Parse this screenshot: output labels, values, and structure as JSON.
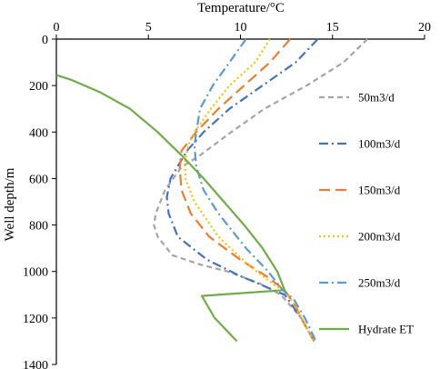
{
  "chart_data": {
    "type": "line",
    "xlabel": "Temperature/°C",
    "ylabel": "Well depth/m",
    "x_axis_position": "top",
    "y_axis_inverted": true,
    "xlim": [
      0,
      20
    ],
    "ylim": [
      0,
      1400
    ],
    "x_ticks": [
      0,
      5,
      10,
      15,
      20
    ],
    "y_ticks": [
      0,
      200,
      400,
      600,
      800,
      1000,
      1200,
      1400
    ],
    "grid": false,
    "legend_position": "right",
    "series": [
      {
        "name": "50m3/d",
        "color": "#a5a5a5",
        "dash": "dash",
        "points": [
          [
            16.9,
            0
          ],
          [
            15.6,
            100
          ],
          [
            13.6,
            200
          ],
          [
            11.3,
            300
          ],
          [
            9.5,
            400
          ],
          [
            7.8,
            500
          ],
          [
            6.8,
            550
          ],
          [
            5.9,
            650
          ],
          [
            5.4,
            750
          ],
          [
            5.3,
            800
          ],
          [
            5.5,
            850
          ],
          [
            6.3,
            930
          ],
          [
            7.8,
            970
          ],
          [
            9.3,
            1000
          ],
          [
            11.0,
            1050
          ],
          [
            12.2,
            1100
          ],
          [
            13.3,
            1200
          ],
          [
            14.0,
            1300
          ]
        ]
      },
      {
        "name": "100m3/d",
        "color": "#4472c4",
        "dash": "dashdot",
        "points": [
          [
            14.2,
            0
          ],
          [
            13.0,
            100
          ],
          [
            11.2,
            200
          ],
          [
            9.4,
            300
          ],
          [
            8.0,
            400
          ],
          [
            7.1,
            480
          ],
          [
            6.2,
            600
          ],
          [
            6.0,
            680
          ],
          [
            6.1,
            750
          ],
          [
            6.6,
            850
          ],
          [
            8.2,
            950
          ],
          [
            10.0,
            1020
          ],
          [
            11.5,
            1070
          ],
          [
            12.4,
            1100
          ],
          [
            13.3,
            1200
          ],
          [
            14.0,
            1300
          ]
        ]
      },
      {
        "name": "150m3/d",
        "color": "#ed7d31",
        "dash": "longdash",
        "points": [
          [
            12.7,
            0
          ],
          [
            11.6,
            100
          ],
          [
            10.2,
            200
          ],
          [
            8.8,
            300
          ],
          [
            7.6,
            400
          ],
          [
            6.8,
            480
          ],
          [
            6.7,
            560
          ],
          [
            6.8,
            650
          ],
          [
            7.3,
            750
          ],
          [
            8.3,
            850
          ],
          [
            10.0,
            950
          ],
          [
            11.4,
            1020
          ],
          [
            12.4,
            1080
          ],
          [
            13.0,
            1150
          ],
          [
            13.5,
            1230
          ],
          [
            14.0,
            1300
          ]
        ]
      },
      {
        "name": "200m3/d",
        "color": "#ffc000",
        "dash": "dot",
        "points": [
          [
            11.6,
            0
          ],
          [
            10.8,
            100
          ],
          [
            9.4,
            200
          ],
          [
            8.4,
            300
          ],
          [
            7.5,
            400
          ],
          [
            7.2,
            450
          ],
          [
            7.0,
            520
          ],
          [
            7.0,
            600
          ],
          [
            7.5,
            700
          ],
          [
            8.8,
            850
          ],
          [
            10.4,
            970
          ],
          [
            11.7,
            1050
          ],
          [
            12.6,
            1100
          ],
          [
            13.2,
            1180
          ],
          [
            14.0,
            1300
          ]
        ]
      },
      {
        "name": "250m3/d",
        "color": "#5b9bd5",
        "dash": "dashdot",
        "points": [
          [
            10.3,
            0
          ],
          [
            9.4,
            100
          ],
          [
            8.5,
            200
          ],
          [
            7.8,
            300
          ],
          [
            7.6,
            400
          ],
          [
            7.5,
            460
          ],
          [
            7.6,
            550
          ],
          [
            8.0,
            650
          ],
          [
            8.8,
            750
          ],
          [
            10.3,
            900
          ],
          [
            11.5,
            1000
          ],
          [
            12.3,
            1080
          ],
          [
            12.9,
            1120
          ],
          [
            13.5,
            1200
          ],
          [
            14.1,
            1300
          ]
        ]
      },
      {
        "name": "Hydrate ET",
        "color": "#70ad47",
        "dash": "solid",
        "points": [
          [
            0.0,
            155
          ],
          [
            0.8,
            175
          ],
          [
            2.4,
            230
          ],
          [
            4.0,
            300
          ],
          [
            5.5,
            400
          ],
          [
            6.8,
            500
          ],
          [
            8.0,
            600
          ],
          [
            9.1,
            700
          ],
          [
            10.2,
            800
          ],
          [
            11.2,
            900
          ],
          [
            12.0,
            1000
          ],
          [
            12.4,
            1080
          ],
          [
            7.9,
            1105
          ],
          [
            8.6,
            1200
          ],
          [
            9.8,
            1300
          ]
        ]
      }
    ]
  }
}
